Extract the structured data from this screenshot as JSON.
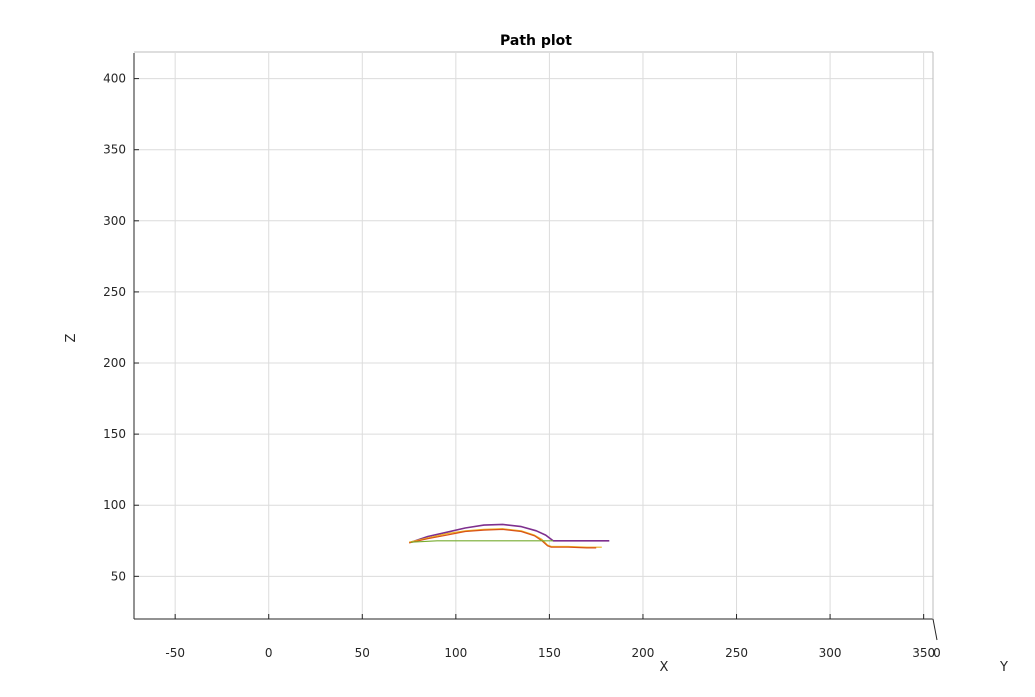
{
  "chart_data": {
    "type": "line",
    "title": "Path plot",
    "xlabel": "X",
    "ylabel": "Z",
    "zlabel": "Y",
    "xlim": [
      -72,
      355
    ],
    "zlim": [
      20,
      418
    ],
    "x_ticks": [
      -50,
      0,
      50,
      100,
      150,
      200,
      250,
      300,
      350
    ],
    "z_ticks": [
      50,
      100,
      150,
      200,
      250,
      300,
      350,
      400
    ],
    "y_ticks": [
      "0"
    ],
    "grid": true,
    "series": [
      {
        "color": "#7E2F8E",
        "points": [
          [
            76,
            74
          ],
          [
            85,
            78
          ],
          [
            95,
            81
          ],
          [
            105,
            84
          ],
          [
            115,
            86
          ],
          [
            125,
            86.5
          ],
          [
            135,
            85
          ],
          [
            143,
            82
          ],
          [
            148,
            79
          ],
          [
            151,
            76
          ],
          [
            152,
            75
          ],
          [
            160,
            75
          ],
          [
            170,
            75
          ],
          [
            182,
            75
          ]
        ]
      },
      {
        "color": "#EDB120",
        "points": [
          [
            75,
            74
          ],
          [
            85,
            77
          ],
          [
            95,
            80
          ],
          [
            105,
            82
          ],
          [
            115,
            83
          ],
          [
            125,
            83.5
          ],
          [
            135,
            82
          ],
          [
            142,
            79
          ],
          [
            146,
            76
          ],
          [
            149,
            72
          ],
          [
            151,
            71
          ],
          [
            160,
            71
          ],
          [
            170,
            70.5
          ],
          [
            178,
            70.5
          ]
        ]
      },
      {
        "color": "#D95319",
        "points": [
          [
            75,
            73.5
          ],
          [
            85,
            76.5
          ],
          [
            95,
            79
          ],
          [
            105,
            81.5
          ],
          [
            115,
            82.5
          ],
          [
            125,
            83
          ],
          [
            135,
            81.5
          ],
          [
            142,
            78.5
          ],
          [
            146,
            75
          ],
          [
            149,
            71.5
          ],
          [
            151,
            70.5
          ],
          [
            160,
            70.5
          ],
          [
            170,
            70
          ],
          [
            175,
            70
          ]
        ]
      },
      {
        "color": "#77AC30",
        "points": [
          [
            76,
            74
          ],
          [
            90,
            75
          ],
          [
            105,
            75
          ],
          [
            120,
            75
          ],
          [
            135,
            75
          ],
          [
            145,
            75
          ],
          [
            152,
            75
          ]
        ]
      }
    ]
  }
}
